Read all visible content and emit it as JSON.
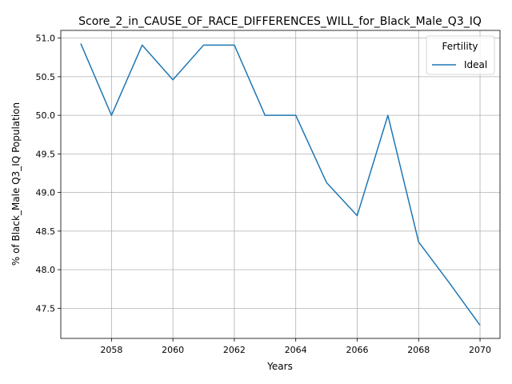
{
  "chart_data": {
    "type": "line",
    "title": "Score_2_in_CAUSE_OF_RACE_DIFFERENCES_WILL_for_Black_Male_Q3_IQ",
    "xlabel": "Years",
    "ylabel": "% of Black_Male Q3_IQ Population",
    "xlim": [
      2056.35,
      2070.65
    ],
    "ylim": [
      47.11,
      51.1
    ],
    "xticks": [
      2058,
      2060,
      2062,
      2064,
      2066,
      2068,
      2070
    ],
    "yticks": [
      47.5,
      48.0,
      48.5,
      49.0,
      49.5,
      50.0,
      50.5,
      51.0
    ],
    "xtick_labels": [
      "2058",
      "2060",
      "2062",
      "2064",
      "2066",
      "2068",
      "2070"
    ],
    "ytick_labels": [
      "47.5",
      "48.0",
      "48.5",
      "49.0",
      "49.5",
      "50.0",
      "50.5",
      "51.0"
    ],
    "grid": true,
    "legend": {
      "title": "Fertility",
      "placement": "upper right"
    },
    "series": [
      {
        "name": "Ideal",
        "color": "#1f77b4",
        "x": [
          2057,
          2058,
          2059,
          2060,
          2061,
          2062,
          2063,
          2064,
          2065,
          2066,
          2067,
          2068,
          2069,
          2070
        ],
        "y": [
          50.93,
          50.0,
          50.91,
          50.46,
          50.91,
          50.91,
          50.0,
          50.0,
          49.13,
          48.7,
          50.0,
          48.36,
          47.83,
          47.28
        ]
      }
    ]
  }
}
